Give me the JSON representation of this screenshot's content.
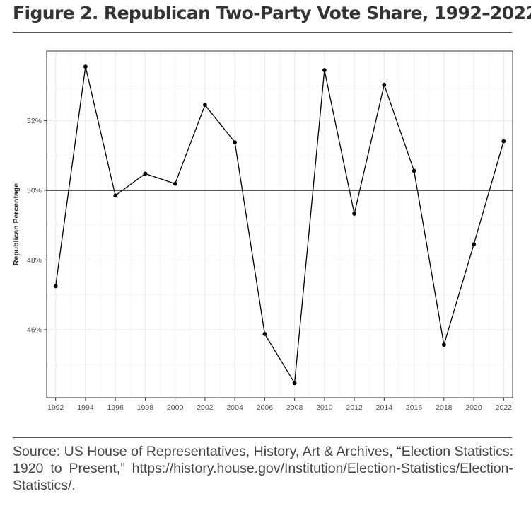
{
  "figure": {
    "title": "Figure 2. Republican Two-Party Vote Share, 1992–2022",
    "source": "Source: US House of Representatives, History, Art & Archives, “Election Statistics: 1920 to Present,” https://history.house.gov/Institution/Election-Statistics/Election-Statistics/."
  },
  "chart_data": {
    "type": "line",
    "title": "",
    "xlabel": "",
    "ylabel": "Republican Percentage",
    "x": [
      1992,
      1994,
      1996,
      1998,
      2000,
      2002,
      2004,
      2006,
      2008,
      2010,
      2012,
      2014,
      2016,
      2018,
      2020,
      2022
    ],
    "series": [
      {
        "values": [
          47.25,
          53.55,
          49.85,
          50.48,
          50.19,
          52.45,
          51.38,
          45.88,
          44.47,
          53.45,
          49.33,
          53.03,
          50.56,
          45.57,
          48.45,
          51.41
        ]
      }
    ],
    "xlim": [
      1991.4,
      2022.6
    ],
    "ylim": [
      44.05,
      54.0
    ],
    "yticks": [
      46,
      48,
      50,
      52
    ],
    "ytick_labels": [
      "46%",
      "48%",
      "50%",
      "52%"
    ],
    "xticks": [
      1992,
      1994,
      1996,
      1998,
      2000,
      2002,
      2004,
      2006,
      2008,
      2010,
      2012,
      2014,
      2016,
      2018,
      2020,
      2022
    ],
    "xtick_labels": [
      "1992",
      "1994",
      "1996",
      "1998",
      "2000",
      "2002",
      "2004",
      "2006",
      "2008",
      "2010",
      "2012",
      "2014",
      "2016",
      "2018",
      "2020",
      "2022"
    ],
    "reference_line": 50,
    "grid": true,
    "line_color": "#000000",
    "grid_color": "#ebebeb",
    "panel_border_color": "#333333"
  }
}
